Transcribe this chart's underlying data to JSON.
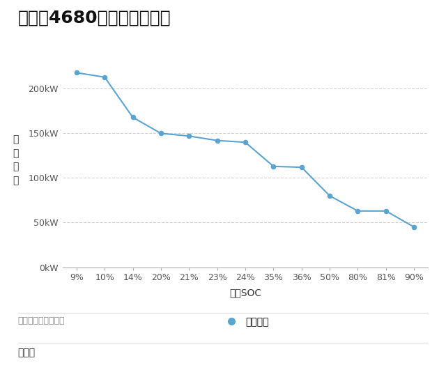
{
  "title": "特斯拉4680快充功率曲线图",
  "x_labels": [
    "9%",
    "10%",
    "14%",
    "20%",
    "21%",
    "23%",
    "24%",
    "35%",
    "36%",
    "50%",
    "80%",
    "81%",
    "90%"
  ],
  "y_values": [
    218,
    213,
    168,
    150,
    147,
    142,
    140,
    113,
    112,
    80,
    63,
    63,
    45
  ],
  "xlabel": "充电SOC",
  "ylabel": "充\n电\n功\n率",
  "legend_label": "充电功率",
  "source_text": "数据来源：测试数据",
  "author_text": "朱玉龙",
  "line_color": "#5BA4CF",
  "marker_color": "#5BA4CF",
  "background_color": "#FFFFFF",
  "grid_color": "#CCCCCC",
  "ytick_labels": [
    "0kW",
    "50kW",
    "100kW",
    "150kW",
    "200kW"
  ],
  "ytick_values": [
    0,
    50,
    100,
    150,
    200
  ],
  "ylim": [
    0,
    240
  ],
  "title_fontsize": 18,
  "axis_label_fontsize": 10,
  "tick_fontsize": 9,
  "legend_fontsize": 10,
  "source_fontsize": 9,
  "author_fontsize": 10,
  "logo_bg_color": "#1a3670"
}
